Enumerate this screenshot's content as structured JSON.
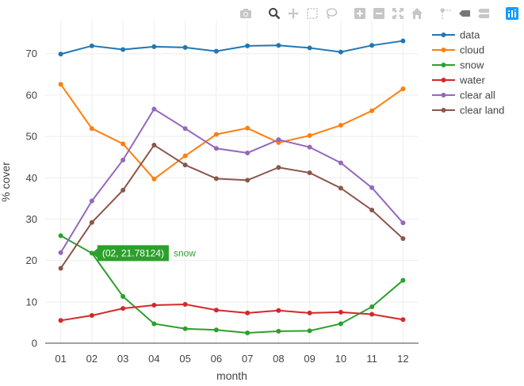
{
  "chart_data": {
    "type": "line",
    "categories": [
      "01",
      "02",
      "03",
      "04",
      "05",
      "06",
      "07",
      "08",
      "09",
      "10",
      "11",
      "12"
    ],
    "xlabel": "month",
    "ylabel": "% cover",
    "ylim": [
      0,
      78
    ],
    "yticks": [
      0,
      10,
      20,
      30,
      40,
      50,
      60,
      70
    ],
    "grid": true,
    "legend_position": "top-right",
    "series": [
      {
        "name": "data",
        "color": "#1f77b4",
        "values": [
          69.9,
          71.9,
          71.0,
          71.7,
          71.5,
          70.6,
          71.9,
          72.0,
          71.4,
          70.4,
          72.0,
          73.1
        ]
      },
      {
        "name": "cloud",
        "color": "#ff7f0e",
        "values": [
          62.6,
          51.9,
          48.2,
          39.7,
          45.3,
          50.5,
          52.0,
          48.5,
          50.2,
          52.7,
          56.2,
          61.5
        ]
      },
      {
        "name": "snow",
        "color": "#2ca02c",
        "values": [
          26.0,
          21.78124,
          11.3,
          4.7,
          3.5,
          3.2,
          2.5,
          2.9,
          3.0,
          4.7,
          8.8,
          15.2
        ]
      },
      {
        "name": "water",
        "color": "#d62728",
        "values": [
          5.5,
          6.7,
          8.4,
          9.2,
          9.4,
          8.0,
          7.3,
          7.9,
          7.3,
          7.5,
          7.0,
          5.7
        ]
      },
      {
        "name": "clear all",
        "color": "#9467bd",
        "values": [
          21.9,
          34.4,
          44.3,
          56.6,
          51.9,
          47.1,
          46.0,
          49.2,
          47.4,
          43.6,
          37.6,
          29.1
        ]
      },
      {
        "name": "clear land",
        "color": "#8c564b",
        "values": [
          18.1,
          29.2,
          37.0,
          47.9,
          43.1,
          39.8,
          39.4,
          42.5,
          41.2,
          37.5,
          32.2,
          25.3
        ]
      }
    ],
    "hover": {
      "series": "snow",
      "category": "02",
      "value": 21.78124,
      "label": "(02, 21.78124)"
    }
  },
  "toolbar": {
    "icons": [
      "camera-icon",
      "zoom-icon",
      "pan-icon",
      "box-select-icon",
      "lasso-icon",
      "zoom-in-icon",
      "zoom-out-icon",
      "autoscale-icon",
      "home-icon",
      "spike-lines-icon",
      "hover-closest-icon",
      "hover-compare-icon",
      "plotly-logo-icon"
    ]
  }
}
